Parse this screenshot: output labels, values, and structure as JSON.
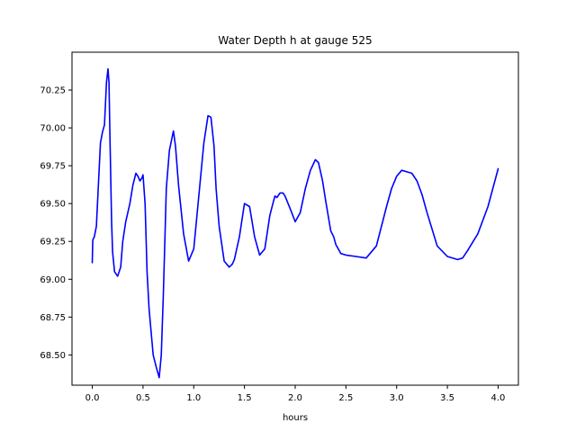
{
  "chart_data": {
    "type": "line",
    "title": "Water Depth h at gauge 525",
    "xlabel": "hours",
    "ylabel": "",
    "xlim": [
      -0.2,
      4.2
    ],
    "ylim": [
      68.3,
      70.5
    ],
    "xticks": [
      0.0,
      0.5,
      1.0,
      1.5,
      2.0,
      2.5,
      3.0,
      3.5,
      4.0
    ],
    "xtick_labels": [
      "0.0",
      "0.5",
      "1.0",
      "1.5",
      "2.0",
      "2.5",
      "3.0",
      "3.5",
      "4.0"
    ],
    "yticks": [
      68.5,
      68.75,
      69.0,
      69.25,
      69.5,
      69.75,
      70.0,
      70.25
    ],
    "ytick_labels": [
      "68.50",
      "68.75",
      "69.00",
      "69.25",
      "69.50",
      "69.75",
      "70.00",
      "70.25"
    ],
    "grid": false,
    "series": [
      {
        "color": "#0000ff",
        "x": [
          0.0,
          0.005,
          0.02,
          0.04,
          0.06,
          0.08,
          0.1,
          0.12,
          0.14,
          0.155,
          0.165,
          0.175,
          0.19,
          0.2,
          0.22,
          0.25,
          0.28,
          0.3,
          0.33,
          0.37,
          0.4,
          0.43,
          0.45,
          0.47,
          0.49,
          0.5,
          0.52,
          0.54,
          0.56,
          0.6,
          0.63,
          0.66,
          0.68,
          0.7,
          0.73,
          0.76,
          0.8,
          0.82,
          0.85,
          0.9,
          0.95,
          1.0,
          1.05,
          1.1,
          1.14,
          1.17,
          1.2,
          1.22,
          1.25,
          1.3,
          1.35,
          1.38,
          1.4,
          1.45,
          1.5,
          1.55,
          1.6,
          1.65,
          1.7,
          1.75,
          1.78,
          1.8,
          1.82,
          1.85,
          1.88,
          1.9,
          1.93,
          1.96,
          2.0,
          2.05,
          2.1,
          2.15,
          2.2,
          2.23,
          2.27,
          2.3,
          2.35,
          2.38,
          2.4,
          2.45,
          2.5,
          2.6,
          2.7,
          2.8,
          2.9,
          2.95,
          3.0,
          3.05,
          3.1,
          3.15,
          3.2,
          3.25,
          3.3,
          3.4,
          3.5,
          3.6,
          3.65,
          3.7,
          3.8,
          3.9,
          4.0
        ],
        "y": [
          69.11,
          69.26,
          69.28,
          69.35,
          69.62,
          69.9,
          69.97,
          70.02,
          70.3,
          70.39,
          70.3,
          69.9,
          69.38,
          69.18,
          69.05,
          69.02,
          69.08,
          69.25,
          69.38,
          69.5,
          69.62,
          69.7,
          69.68,
          69.65,
          69.67,
          69.69,
          69.5,
          69.05,
          68.8,
          68.5,
          68.42,
          68.35,
          68.5,
          68.9,
          69.6,
          69.85,
          69.98,
          69.88,
          69.62,
          69.3,
          69.12,
          69.2,
          69.55,
          69.9,
          70.08,
          70.07,
          69.88,
          69.6,
          69.35,
          69.12,
          69.08,
          69.1,
          69.13,
          69.28,
          69.5,
          69.48,
          69.28,
          69.16,
          69.2,
          69.42,
          69.5,
          69.55,
          69.54,
          69.57,
          69.57,
          69.55,
          69.5,
          69.45,
          69.38,
          69.44,
          69.6,
          69.72,
          69.79,
          69.77,
          69.65,
          69.52,
          69.32,
          69.28,
          69.23,
          69.17,
          69.16,
          69.15,
          69.14,
          69.22,
          69.48,
          69.6,
          69.68,
          69.72,
          69.71,
          69.7,
          69.65,
          69.56,
          69.44,
          69.22,
          69.15,
          69.13,
          69.14,
          69.19,
          69.3,
          69.48,
          69.73
        ]
      }
    ]
  }
}
